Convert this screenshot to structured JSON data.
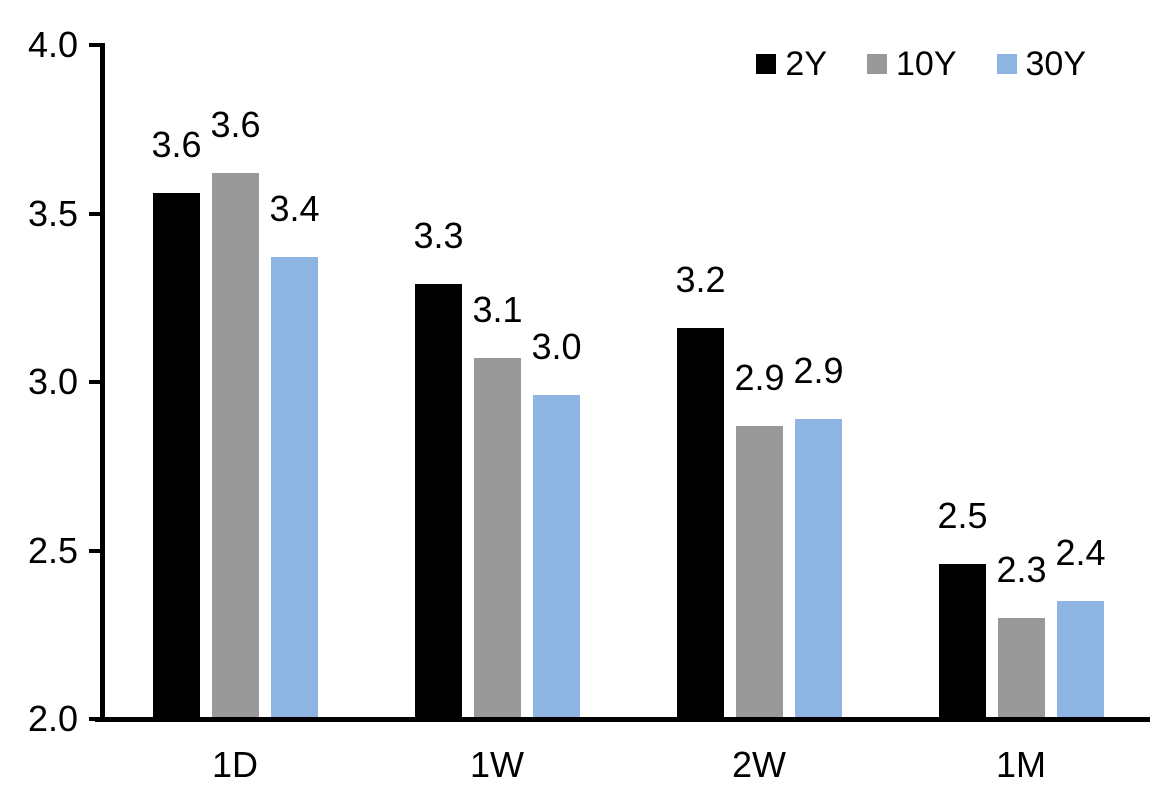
{
  "chart_data": {
    "type": "bar",
    "title": "",
    "xlabel": "",
    "ylabel": "",
    "categories": [
      "1D",
      "1W",
      "2W",
      "1M"
    ],
    "series": [
      {
        "name": "2Y",
        "color": "#000000",
        "values": [
          3.56,
          3.29,
          3.16,
          2.46
        ],
        "labels": [
          "3.6",
          "3.3",
          "3.2",
          "2.5"
        ]
      },
      {
        "name": "10Y",
        "color": "#999999",
        "values": [
          3.62,
          3.07,
          2.87,
          2.3
        ],
        "labels": [
          "3.6",
          "3.1",
          "2.9",
          "2.3"
        ]
      },
      {
        "name": "30Y",
        "color": "#8EB4E3",
        "values": [
          3.37,
          2.96,
          2.89,
          2.35
        ],
        "labels": [
          "3.4",
          "3.0",
          "2.9",
          "2.4"
        ]
      }
    ],
    "ylim": [
      2.0,
      4.0
    ],
    "yticks": [
      "4.0",
      "3.5",
      "3.0",
      "2.5",
      "2.0"
    ],
    "grid": false,
    "legend_position": "top-right",
    "axis_color": "#000000",
    "background_color": "#ffffff",
    "text_color": "#000000"
  }
}
